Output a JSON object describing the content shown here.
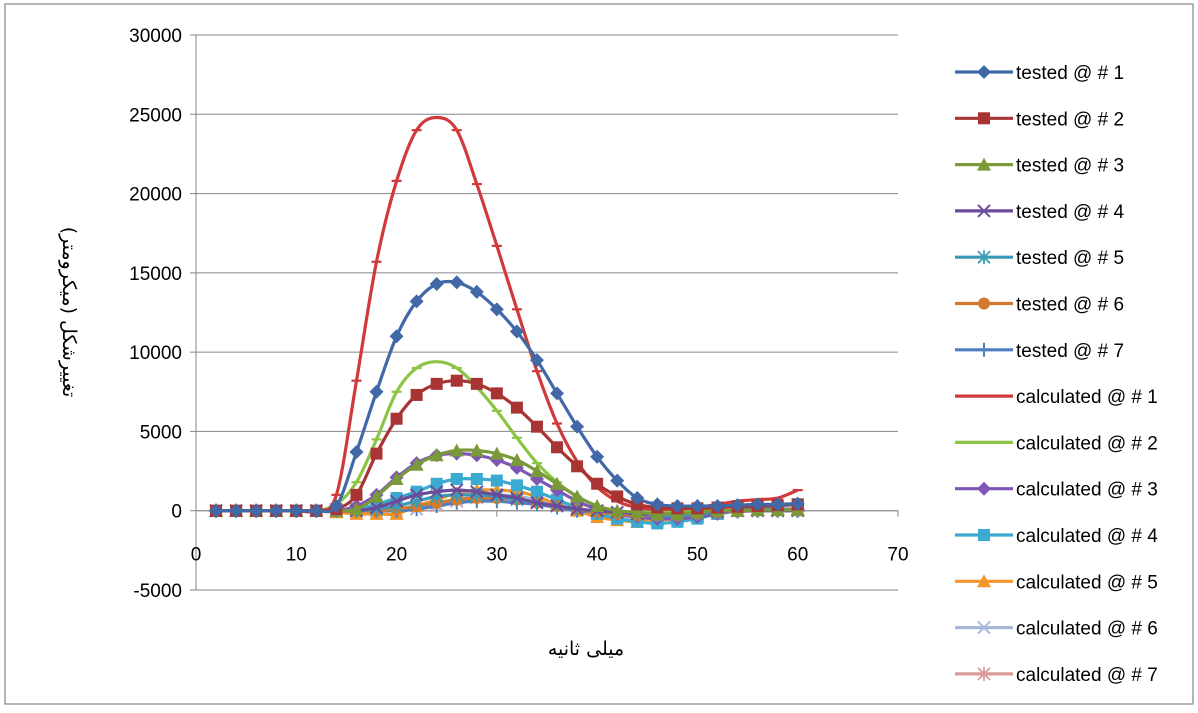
{
  "chart_data": {
    "type": "line",
    "xlabel": "میلی ثانیه",
    "ylabel": "تغییرشکل (میکرومتر)",
    "xlim": [
      0,
      70
    ],
    "ylim": [
      -5000,
      30000
    ],
    "x_ticks": [
      "0",
      "10",
      "20",
      "30",
      "40",
      "50",
      "60",
      "70"
    ],
    "y_ticks": [
      "-5000",
      "0",
      "5000",
      "10000",
      "15000",
      "20000",
      "25000",
      "30000"
    ],
    "grid": "horizontal",
    "legend_position": "right",
    "x": [
      2,
      4,
      6,
      8,
      10,
      12,
      14,
      16,
      18,
      20,
      22,
      24,
      26,
      28,
      30,
      32,
      34,
      36,
      38,
      40,
      42,
      44,
      46,
      48,
      50,
      52,
      54,
      56,
      58,
      60
    ],
    "series": [
      {
        "name": "tested @ # 1",
        "color": "#4169A8",
        "marker": "diamond",
        "line": true,
        "values": [
          0,
          0,
          0,
          0,
          0,
          0,
          300,
          3700,
          7500,
          11000,
          13200,
          14300,
          14400,
          13800,
          12700,
          11300,
          9500,
          7400,
          5300,
          3400,
          1900,
          800,
          400,
          300,
          300,
          300,
          350,
          400,
          400,
          450
        ]
      },
      {
        "name": "tested @ # 2",
        "color": "#A83434",
        "marker": "square",
        "line": true,
        "values": [
          0,
          0,
          0,
          0,
          0,
          0,
          100,
          1000,
          3600,
          5800,
          7300,
          8000,
          8200,
          8000,
          7400,
          6500,
          5300,
          4000,
          2800,
          1700,
          900,
          400,
          200,
          150,
          150,
          200,
          250,
          300,
          350,
          400
        ]
      },
      {
        "name": "tested @ # 3",
        "color": "#7A9A3A",
        "marker": "triangle",
        "line": true,
        "values": [
          0,
          0,
          0,
          0,
          0,
          0,
          0,
          100,
          900,
          2000,
          2900,
          3500,
          3800,
          3800,
          3600,
          3200,
          2500,
          1700,
          900,
          300,
          0,
          -100,
          -200,
          -200,
          -100,
          0,
          0,
          50,
          50,
          50
        ]
      },
      {
        "name": "tested @ # 4",
        "color": "#6B4C9A",
        "marker": "x",
        "line": true,
        "values": [
          0,
          0,
          0,
          0,
          0,
          0,
          0,
          0,
          200,
          600,
          1000,
          1200,
          1300,
          1200,
          1000,
          800,
          500,
          300,
          100,
          0,
          -100,
          -200,
          -200,
          -200,
          -100,
          -50,
          0,
          0,
          0,
          0
        ]
      },
      {
        "name": "tested @ # 5",
        "color": "#3A9AB5",
        "marker": "asterisk",
        "line": true,
        "values": [
          0,
          0,
          0,
          0,
          0,
          0,
          0,
          0,
          100,
          300,
          600,
          900,
          1000,
          1000,
          900,
          700,
          500,
          300,
          100,
          0,
          -100,
          -200,
          -300,
          -300,
          -200,
          -100,
          0,
          0,
          0,
          0
        ]
      },
      {
        "name": "tested @ # 6",
        "color": "#D27A2E",
        "marker": "circle",
        "line": true,
        "values": [
          0,
          0,
          0,
          0,
          0,
          0,
          0,
          0,
          0,
          100,
          300,
          500,
          700,
          800,
          800,
          700,
          500,
          300,
          100,
          -100,
          -200,
          -300,
          -300,
          -300,
          -200,
          -100,
          -50,
          0,
          0,
          0
        ]
      },
      {
        "name": "tested @ # 7",
        "color": "#4F7EC4",
        "marker": "plus",
        "line": true,
        "values": [
          0,
          0,
          0,
          0,
          0,
          0,
          0,
          0,
          0,
          0,
          100,
          300,
          500,
          600,
          600,
          500,
          400,
          200,
          0,
          -100,
          -200,
          -300,
          -300,
          -300,
          -200,
          -100,
          -50,
          0,
          0,
          0
        ]
      },
      {
        "name": "calculated @ # 1",
        "color": "#D03A3A",
        "marker": "dash",
        "line": true,
        "values": [
          0,
          0,
          0,
          0,
          0,
          0,
          1000,
          8200,
          15700,
          20800,
          24000,
          24800,
          24000,
          20600,
          16700,
          12700,
          8800,
          5500,
          3100,
          1500,
          600,
          200,
          100,
          100,
          200,
          400,
          600,
          700,
          800,
          1300
        ]
      },
      {
        "name": "calculated @ # 2",
        "color": "#8DC446",
        "marker": "dash",
        "line": true,
        "values": [
          0,
          0,
          0,
          0,
          0,
          0,
          400,
          1800,
          4500,
          7500,
          9000,
          9400,
          9000,
          7800,
          6300,
          4600,
          3000,
          1800,
          900,
          300,
          0,
          -100,
          -100,
          -100,
          0,
          0,
          0,
          0,
          0,
          0
        ]
      },
      {
        "name": "calculated @ # 3",
        "color": "#7E57B5",
        "marker": "diamond",
        "line": true,
        "values": [
          0,
          0,
          0,
          0,
          0,
          0,
          0,
          300,
          1000,
          2100,
          3000,
          3500,
          3600,
          3500,
          3200,
          2700,
          2000,
          1300,
          600,
          100,
          -200,
          -400,
          -500,
          -500,
          -400,
          -200,
          0,
          100,
          100,
          100
        ]
      },
      {
        "name": "calculated @ # 4",
        "color": "#3BAAD0",
        "marker": "square",
        "line": true,
        "values": [
          0,
          0,
          0,
          0,
          0,
          0,
          0,
          100,
          400,
          800,
          1200,
          1700,
          2000,
          2000,
          1900,
          1600,
          1200,
          700,
          200,
          -200,
          -500,
          -700,
          -800,
          -700,
          -500,
          -200,
          0,
          200,
          300,
          400
        ]
      },
      {
        "name": "calculated @ # 5",
        "color": "#F4952A",
        "marker": "triangle",
        "line": true,
        "values": [
          0,
          0,
          0,
          0,
          0,
          0,
          -100,
          -200,
          -200,
          -200,
          300,
          700,
          1100,
          1300,
          1300,
          1200,
          900,
          400,
          0,
          -400,
          -600,
          -700,
          -600,
          -500,
          -400,
          -200,
          0,
          100,
          100,
          100
        ]
      },
      {
        "name": "calculated @ # 6",
        "color": "#A9B8DA",
        "marker": "x",
        "line": true,
        "values": [
          0,
          0,
          0,
          0,
          0,
          0,
          0,
          0,
          0,
          0,
          100,
          400,
          700,
          900,
          1000,
          900,
          700,
          400,
          100,
          -200,
          -400,
          -500,
          -500,
          -400,
          -300,
          -100,
          0,
          100,
          100,
          100
        ]
      },
      {
        "name": "calculated @ # 7",
        "color": "#DB9A9A",
        "marker": "asterisk",
        "line": true,
        "values": [
          0,
          0,
          0,
          0,
          0,
          0,
          0,
          0,
          0,
          0,
          100,
          300,
          600,
          800,
          900,
          800,
          600,
          400,
          100,
          -100,
          -300,
          -400,
          -400,
          -300,
          -200,
          -100,
          0,
          50,
          50,
          50
        ]
      }
    ]
  }
}
